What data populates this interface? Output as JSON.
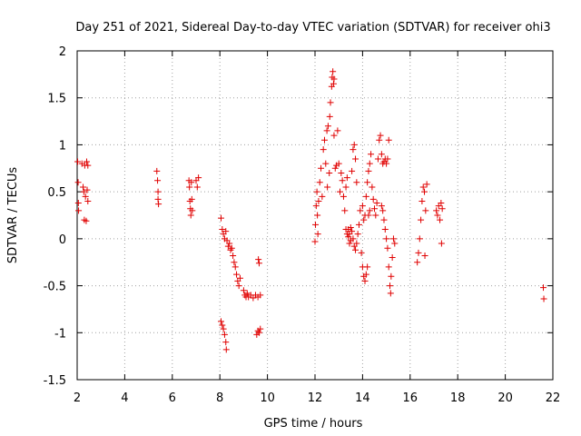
{
  "chart_data": {
    "type": "scatter",
    "title": "Day 251 of 2021, Sidereal Day-to-day VTEC variation (SDTVAR) for receiver ohi3",
    "xlabel": "GPS time / hours",
    "ylabel": "SDTVAR / TECUs",
    "xlim": [
      2,
      22
    ],
    "ylim": [
      -1.5,
      2
    ],
    "xticks": [
      2,
      4,
      6,
      8,
      10,
      12,
      14,
      16,
      18,
      20,
      22
    ],
    "yticks": [
      -1.5,
      -1,
      -0.5,
      0,
      0.5,
      1,
      1.5,
      2
    ],
    "xtick_labels": [
      "2",
      "4",
      "6",
      "8",
      "10",
      "12",
      "14",
      "16",
      "18",
      "20",
      "22"
    ],
    "ytick_labels": [
      "-1.5",
      "-1",
      "-0.5",
      "0",
      "0.5",
      "1",
      "1.5",
      "2"
    ],
    "grid": true,
    "marker": "+",
    "color": "#e00000",
    "series": [
      {
        "name": "SDTVAR",
        "points": [
          [
            2.02,
            0.82
          ],
          [
            2.04,
            0.6
          ],
          [
            2.05,
            0.38
          ],
          [
            2.06,
            0.3
          ],
          [
            2.2,
            0.8
          ],
          [
            2.25,
            0.55
          ],
          [
            2.28,
            0.5
          ],
          [
            2.3,
            0.2
          ],
          [
            2.32,
            0.78
          ],
          [
            2.35,
            0.45
          ],
          [
            2.38,
            0.19
          ],
          [
            2.4,
            0.82
          ],
          [
            2.42,
            0.52
          ],
          [
            2.45,
            0.4
          ],
          [
            2.45,
            0.78
          ],
          [
            5.35,
            0.72
          ],
          [
            5.38,
            0.62
          ],
          [
            5.4,
            0.5
          ],
          [
            5.4,
            0.42
          ],
          [
            5.42,
            0.37
          ],
          [
            6.7,
            0.62
          ],
          [
            6.72,
            0.55
          ],
          [
            6.74,
            0.4
          ],
          [
            6.76,
            0.32
          ],
          [
            6.78,
            0.25
          ],
          [
            6.8,
            0.6
          ],
          [
            6.82,
            0.42
          ],
          [
            6.84,
            0.3
          ],
          [
            7.0,
            0.62
          ],
          [
            7.05,
            0.55
          ],
          [
            7.1,
            0.65
          ],
          [
            8.05,
            0.22
          ],
          [
            8.1,
            0.1
          ],
          [
            8.15,
            0.05
          ],
          [
            8.2,
            0.0
          ],
          [
            8.25,
            0.08
          ],
          [
            8.3,
            -0.02
          ],
          [
            8.35,
            -0.08
          ],
          [
            8.4,
            -0.05
          ],
          [
            8.45,
            -0.12
          ],
          [
            8.5,
            -0.1
          ],
          [
            8.55,
            -0.18
          ],
          [
            8.6,
            -0.25
          ],
          [
            8.65,
            -0.3
          ],
          [
            8.7,
            -0.38
          ],
          [
            8.75,
            -0.45
          ],
          [
            8.8,
            -0.5
          ],
          [
            8.85,
            -0.42
          ],
          [
            8.05,
            -0.88
          ],
          [
            8.1,
            -0.92
          ],
          [
            8.15,
            -0.96
          ],
          [
            8.2,
            -1.02
          ],
          [
            8.25,
            -1.1
          ],
          [
            8.27,
            -1.18
          ],
          [
            9.0,
            -0.55
          ],
          [
            9.05,
            -0.6
          ],
          [
            9.1,
            -0.62
          ],
          [
            9.15,
            -0.58
          ],
          [
            9.2,
            -0.62
          ],
          [
            9.3,
            -0.6
          ],
          [
            9.4,
            -0.63
          ],
          [
            9.5,
            -0.6
          ],
          [
            9.6,
            -0.62
          ],
          [
            9.7,
            -0.6
          ],
          [
            9.55,
            -1.02
          ],
          [
            9.6,
            -0.98
          ],
          [
            9.65,
            -1.0
          ],
          [
            9.7,
            -0.96
          ],
          [
            9.62,
            -0.22
          ],
          [
            9.65,
            -0.26
          ],
          [
            12.0,
            -0.03
          ],
          [
            12.02,
            0.15
          ],
          [
            12.05,
            0.35
          ],
          [
            12.08,
            0.5
          ],
          [
            12.1,
            0.25
          ],
          [
            12.12,
            0.05
          ],
          [
            12.15,
            0.4
          ],
          [
            12.2,
            0.6
          ],
          [
            12.25,
            0.75
          ],
          [
            12.3,
            0.45
          ],
          [
            12.35,
            0.95
          ],
          [
            12.4,
            1.05
          ],
          [
            12.45,
            0.8
          ],
          [
            12.5,
            1.15
          ],
          [
            12.52,
            0.55
          ],
          [
            12.55,
            1.2
          ],
          [
            12.6,
            0.7
          ],
          [
            12.62,
            1.3
          ],
          [
            12.65,
            1.45
          ],
          [
            12.7,
            1.62
          ],
          [
            12.72,
            1.72
          ],
          [
            12.75,
            1.78
          ],
          [
            12.78,
            1.65
          ],
          [
            12.8,
            1.7
          ],
          [
            12.8,
            1.1
          ],
          [
            12.85,
            0.75
          ],
          [
            12.9,
            0.78
          ],
          [
            12.95,
            1.15
          ],
          [
            13.0,
            0.8
          ],
          [
            13.05,
            0.5
          ],
          [
            13.1,
            0.7
          ],
          [
            13.15,
            0.62
          ],
          [
            13.2,
            0.45
          ],
          [
            13.25,
            0.3
          ],
          [
            13.3,
            0.55
          ],
          [
            13.35,
            0.65
          ],
          [
            13.4,
            0.1
          ],
          [
            13.45,
            0.05
          ],
          [
            13.5,
            0.12
          ],
          [
            13.55,
            0.72
          ],
          [
            13.6,
            0.95
          ],
          [
            13.65,
            1.0
          ],
          [
            13.7,
            0.85
          ],
          [
            13.75,
            0.6
          ],
          [
            13.3,
            0.1
          ],
          [
            13.35,
            0.05
          ],
          [
            13.4,
            0.02
          ],
          [
            13.45,
            -0.05
          ],
          [
            13.5,
            -0.02
          ],
          [
            13.55,
            0.08
          ],
          [
            13.6,
            0.0
          ],
          [
            13.65,
            -0.08
          ],
          [
            13.7,
            -0.12
          ],
          [
            13.75,
            -0.05
          ],
          [
            13.8,
            0.05
          ],
          [
            13.85,
            0.15
          ],
          [
            13.9,
            0.3
          ],
          [
            13.95,
            -0.15
          ],
          [
            14.0,
            -0.3
          ],
          [
            14.05,
            -0.4
          ],
          [
            14.1,
            -0.45
          ],
          [
            14.15,
            -0.38
          ],
          [
            14.2,
            -0.3
          ],
          [
            14.25,
            0.25
          ],
          [
            14.3,
            0.3
          ],
          [
            14.0,
            0.35
          ],
          [
            14.05,
            0.2
          ],
          [
            14.1,
            0.25
          ],
          [
            14.15,
            0.45
          ],
          [
            14.2,
            0.6
          ],
          [
            14.25,
            0.72
          ],
          [
            14.3,
            0.8
          ],
          [
            14.35,
            0.9
          ],
          [
            14.4,
            0.55
          ],
          [
            14.45,
            0.42
          ],
          [
            14.5,
            0.32
          ],
          [
            14.55,
            0.25
          ],
          [
            14.6,
            0.38
          ],
          [
            14.65,
            0.85
          ],
          [
            14.7,
            1.05
          ],
          [
            14.75,
            1.1
          ],
          [
            14.8,
            0.9
          ],
          [
            14.85,
            0.8
          ],
          [
            14.9,
            0.82
          ],
          [
            14.95,
            0.85
          ],
          [
            15.0,
            0.8
          ],
          [
            15.05,
            0.85
          ],
          [
            15.1,
            1.05
          ],
          [
            14.8,
            0.35
          ],
          [
            14.85,
            0.3
          ],
          [
            14.9,
            0.2
          ],
          [
            14.95,
            0.1
          ],
          [
            15.0,
            0.0
          ],
          [
            15.05,
            -0.1
          ],
          [
            15.1,
            -0.3
          ],
          [
            15.15,
            -0.5
          ],
          [
            15.18,
            -0.58
          ],
          [
            15.2,
            -0.4
          ],
          [
            15.25,
            -0.2
          ],
          [
            15.3,
            0.0
          ],
          [
            15.35,
            -0.05
          ],
          [
            16.3,
            -0.25
          ],
          [
            16.35,
            -0.15
          ],
          [
            16.4,
            0.0
          ],
          [
            16.45,
            0.2
          ],
          [
            16.5,
            0.4
          ],
          [
            16.55,
            0.55
          ],
          [
            16.6,
            0.5
          ],
          [
            16.62,
            -0.18
          ],
          [
            16.65,
            0.3
          ],
          [
            16.7,
            0.58
          ],
          [
            17.1,
            0.3
          ],
          [
            17.15,
            0.25
          ],
          [
            17.2,
            0.35
          ],
          [
            17.25,
            0.2
          ],
          [
            17.3,
            0.38
          ],
          [
            17.32,
            -0.05
          ],
          [
            17.35,
            0.32
          ],
          [
            21.6,
            -0.52
          ],
          [
            21.62,
            -0.64
          ]
        ]
      }
    ]
  }
}
